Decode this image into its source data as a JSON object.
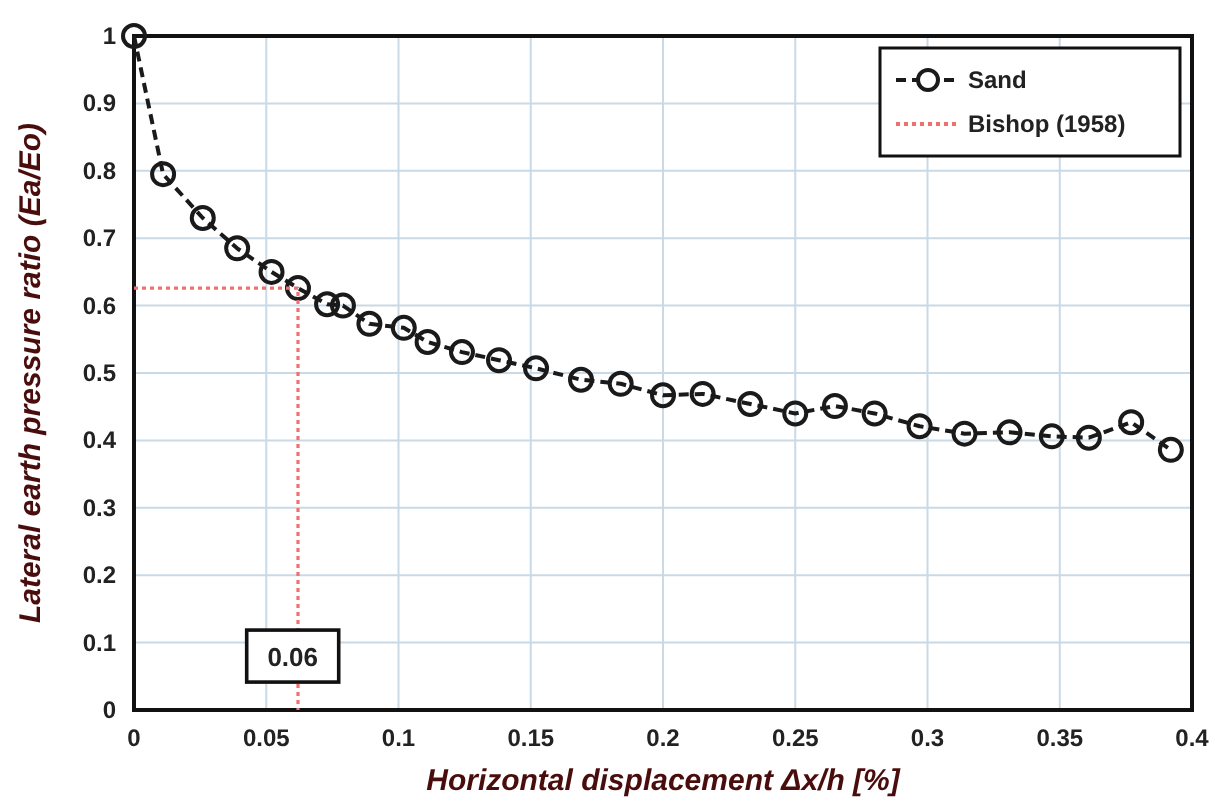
{
  "chart_data": {
    "type": "line",
    "xlabel": "Horizontal displacement Δx/h [%]",
    "ylabel": "Lateral earth pressure ratio (Ea/Eo)",
    "xlim": [
      0,
      0.4
    ],
    "xticks": [
      0,
      0.05,
      0.1,
      0.15,
      0.2,
      0.25,
      0.3,
      0.35,
      0.4
    ],
    "ylim": [
      0,
      1
    ],
    "yticks": [
      0,
      0.1,
      0.2,
      0.3,
      0.4,
      0.5,
      0.6,
      0.7,
      0.8,
      0.9,
      1
    ],
    "grid": true,
    "legend": "top right",
    "series": [
      {
        "name": "Sand",
        "color": "#1a1a1a",
        "marker": "circle",
        "line_style": "dashed",
        "x": [
          0,
          0.011,
          0.026,
          0.039,
          0.052,
          0.062,
          0.073,
          0.079,
          0.089,
          0.102,
          0.111,
          0.124,
          0.138,
          0.152,
          0.169,
          0.184,
          0.2,
          0.215,
          0.233,
          0.25,
          0.265,
          0.28,
          0.297,
          0.314,
          0.331,
          0.347,
          0.361,
          0.377,
          0.392
        ],
        "values": [
          1.0,
          0.795,
          0.73,
          0.685,
          0.65,
          0.626,
          0.602,
          0.6,
          0.573,
          0.567,
          0.546,
          0.531,
          0.519,
          0.507,
          0.49,
          0.484,
          0.467,
          0.469,
          0.454,
          0.44,
          0.451,
          0.44,
          0.421,
          0.41,
          0.412,
          0.406,
          0.404,
          0.427,
          0.386
        ]
      },
      {
        "name": "Bishop (1958)",
        "color": "#f07070",
        "marker": "none",
        "line_style": "dotted",
        "x": [
          0,
          0.062,
          0.062
        ],
        "values": [
          0.626,
          0.626,
          0
        ]
      }
    ],
    "annotations": [
      {
        "text": "0.06",
        "x": 0.06,
        "y": 0.08
      }
    ]
  }
}
